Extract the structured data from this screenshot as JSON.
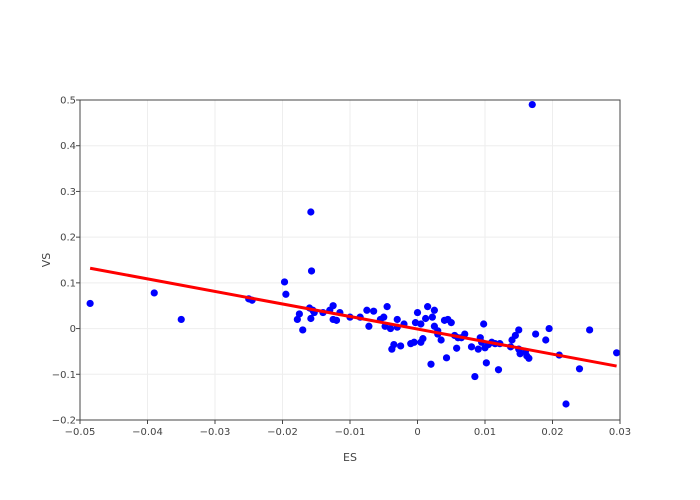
{
  "chart_data": {
    "type": "scatter",
    "xlabel": "ES",
    "ylabel": "VS",
    "xlim": [
      -0.05,
      0.03
    ],
    "ylim": [
      -0.2,
      0.5
    ],
    "x_ticks": [
      -0.05,
      -0.04,
      -0.03,
      -0.02,
      -0.01,
      0,
      0.01,
      0.02,
      0.03
    ],
    "x_tick_labels": [
      "−0.05",
      "−0.04",
      "−0.03",
      "−0.02",
      "−0.01",
      "0",
      "0.01",
      "0.02",
      "0.03"
    ],
    "y_ticks": [
      -0.2,
      -0.1,
      0,
      0.1,
      0.2,
      0.3,
      0.4,
      0.5
    ],
    "y_tick_labels": [
      "−0.2",
      "−0.1",
      "0",
      "0.1",
      "0.2",
      "0.3",
      "0.4",
      "0.5"
    ],
    "grid": true,
    "legend": "none",
    "colors": {
      "points": "#0000ff",
      "fit": "#ff0000",
      "frame": "#444444",
      "grid": "#eeeeee"
    },
    "series": [
      {
        "kind": "markers",
        "points": [
          [
            -0.0485,
            0.055
          ],
          [
            -0.039,
            0.078
          ],
          [
            -0.035,
            0.02
          ],
          [
            -0.025,
            0.065
          ],
          [
            -0.0245,
            0.062
          ],
          [
            -0.0197,
            0.102
          ],
          [
            -0.0195,
            0.075
          ],
          [
            -0.0178,
            0.02
          ],
          [
            -0.0175,
            0.032
          ],
          [
            -0.017,
            -0.003
          ],
          [
            -0.016,
            0.045
          ],
          [
            -0.0158,
            0.255
          ],
          [
            -0.0157,
            0.126
          ],
          [
            -0.0158,
            0.022
          ],
          [
            -0.0155,
            0.04
          ],
          [
            -0.0153,
            0.035
          ],
          [
            -0.014,
            0.035
          ],
          [
            -0.013,
            0.04
          ],
          [
            -0.0125,
            0.05
          ],
          [
            -0.0125,
            0.02
          ],
          [
            -0.012,
            0.018
          ],
          [
            -0.0115,
            0.035
          ],
          [
            -0.01,
            0.025
          ],
          [
            -0.0085,
            0.025
          ],
          [
            -0.0075,
            0.04
          ],
          [
            -0.0072,
            0.005
          ],
          [
            -0.0065,
            0.038
          ],
          [
            -0.0055,
            0.02
          ],
          [
            -0.005,
            0.025
          ],
          [
            -0.0048,
            0.005
          ],
          [
            -0.0045,
            0.048
          ],
          [
            -0.004,
            0.0
          ],
          [
            -0.0038,
            -0.045
          ],
          [
            -0.0035,
            -0.035
          ],
          [
            -0.003,
            0.02
          ],
          [
            -0.003,
            0.003
          ],
          [
            -0.0025,
            -0.038
          ],
          [
            -0.002,
            0.01
          ],
          [
            -0.001,
            -0.033
          ],
          [
            -0.0005,
            -0.03
          ],
          [
            -0.0003,
            0.013
          ],
          [
            0.0,
            0.035
          ],
          [
            0.0005,
            0.01
          ],
          [
            0.0005,
            -0.03
          ],
          [
            0.0008,
            -0.022
          ],
          [
            0.0012,
            0.022
          ],
          [
            0.0015,
            0.048
          ],
          [
            0.002,
            -0.078
          ],
          [
            0.0022,
            0.025
          ],
          [
            0.0025,
            0.04
          ],
          [
            0.0025,
            0.005
          ],
          [
            0.003,
            -0.012
          ],
          [
            0.003,
            -0.005
          ],
          [
            0.0035,
            -0.025
          ],
          [
            0.004,
            0.018
          ],
          [
            0.0043,
            -0.064
          ],
          [
            0.0045,
            0.02
          ],
          [
            0.005,
            0.013
          ],
          [
            0.0055,
            -0.015
          ],
          [
            0.0058,
            -0.043
          ],
          [
            0.006,
            -0.02
          ],
          [
            0.0065,
            -0.02
          ],
          [
            0.007,
            -0.012
          ],
          [
            0.008,
            -0.04
          ],
          [
            0.0085,
            -0.105
          ],
          [
            0.009,
            -0.045
          ],
          [
            0.0093,
            -0.02
          ],
          [
            0.0095,
            -0.03
          ],
          [
            0.0098,
            0.01
          ],
          [
            0.01,
            -0.042
          ],
          [
            0.0102,
            -0.075
          ],
          [
            0.0105,
            -0.035
          ],
          [
            0.011,
            -0.03
          ],
          [
            0.0115,
            -0.033
          ],
          [
            0.012,
            -0.09
          ],
          [
            0.0122,
            -0.033
          ],
          [
            0.0138,
            -0.04
          ],
          [
            0.014,
            -0.025
          ],
          [
            0.0145,
            -0.015
          ],
          [
            0.015,
            -0.003
          ],
          [
            0.015,
            -0.045
          ],
          [
            0.0152,
            -0.055
          ],
          [
            0.016,
            -0.05
          ],
          [
            0.0162,
            -0.06
          ],
          [
            0.0165,
            -0.065
          ],
          [
            0.017,
            0.49
          ],
          [
            0.0175,
            -0.012
          ],
          [
            0.019,
            -0.025
          ],
          [
            0.0195,
            0.0
          ],
          [
            0.021,
            -0.058
          ],
          [
            0.022,
            -0.165
          ],
          [
            0.024,
            -0.088
          ],
          [
            0.0255,
            -0.003
          ],
          [
            0.0295,
            -0.053
          ]
        ]
      },
      {
        "kind": "line",
        "points": [
          [
            -0.0485,
            0.132
          ],
          [
            0.0295,
            -0.082
          ]
        ]
      }
    ]
  }
}
